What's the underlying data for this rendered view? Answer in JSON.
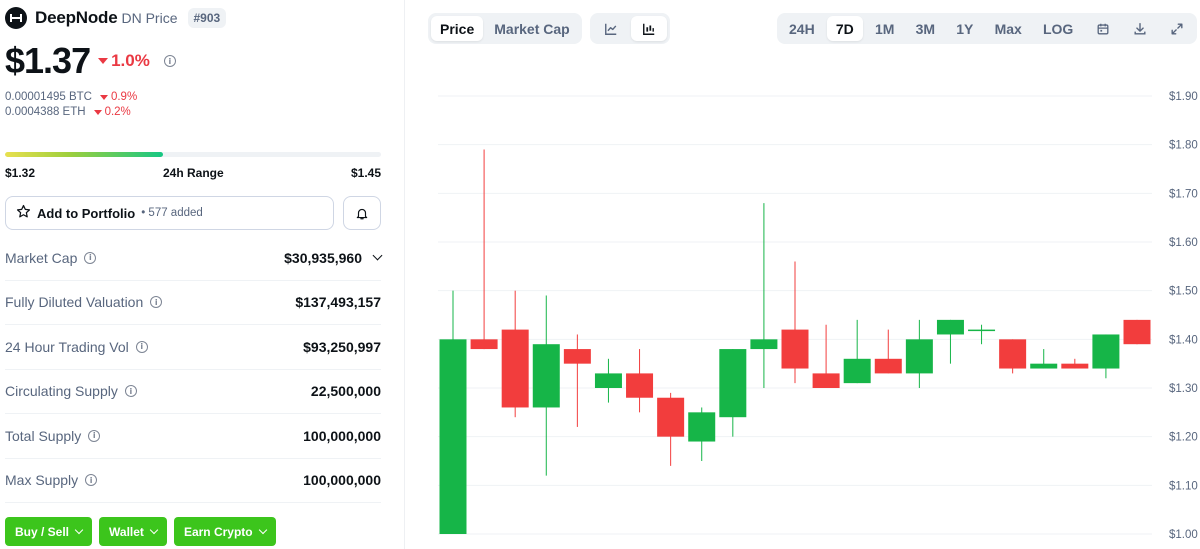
{
  "coin": {
    "name": "DeepNode",
    "symbol_label": "DN Price",
    "rank": "#903",
    "price": "$1.37",
    "change": "1.0%",
    "btc_value": "0.00001495 BTC",
    "btc_change": "0.9%",
    "eth_value": "0.0004388 ETH",
    "eth_change": "0.2%"
  },
  "range": {
    "low": "$1.32",
    "label": "24h Range",
    "high": "$1.45",
    "fill_fraction": 0.42
  },
  "portfolio": {
    "add_label": "Add to Portfolio",
    "added_count": "• 577 added"
  },
  "stats": [
    {
      "label": "Market Cap",
      "value": "$30,935,960",
      "expandable": true
    },
    {
      "label": "Fully Diluted Valuation",
      "value": "$137,493,157",
      "expandable": false
    },
    {
      "label": "24 Hour Trading Vol",
      "value": "$93,250,997",
      "expandable": false
    },
    {
      "label": "Circulating Supply",
      "value": "22,500,000",
      "expandable": false
    },
    {
      "label": "Total Supply",
      "value": "100,000,000",
      "expandable": false
    },
    {
      "label": "Max Supply",
      "value": "100,000,000",
      "expandable": false
    }
  ],
  "actions": [
    "Buy / Sell",
    "Wallet",
    "Earn Crypto"
  ],
  "chart_controls": {
    "metric_tabs": [
      "Price",
      "Market Cap"
    ],
    "metric_active": "Price",
    "chart_types": [
      "line-chart-icon",
      "candlestick-chart-icon"
    ],
    "chart_type_active": "candlestick-chart-icon",
    "ranges": [
      "24H",
      "7D",
      "1M",
      "3M",
      "1Y",
      "Max",
      "LOG"
    ],
    "range_active": "7D",
    "tools": [
      "calendar-icon",
      "download-icon",
      "expand-icon"
    ]
  },
  "colors": {
    "up": "#16b548",
    "down": "#f23d3d",
    "negative_text": "#ea3943",
    "action_green": "#3cc51c"
  },
  "chart_data": {
    "type": "candlestick",
    "y_ticks": [
      "$1.90",
      "$1.80",
      "$1.70",
      "$1.60",
      "$1.50",
      "$1.40",
      "$1.30",
      "$1.20",
      "$1.10",
      "$1.00"
    ],
    "ylim": [
      1.0,
      1.9
    ],
    "grid": true,
    "candles": [
      {
        "o": 1.0,
        "h": 1.5,
        "l": 1.0,
        "c": 1.4
      },
      {
        "o": 1.4,
        "h": 1.79,
        "l": 1.38,
        "c": 1.38
      },
      {
        "o": 1.42,
        "h": 1.5,
        "l": 1.24,
        "c": 1.26
      },
      {
        "o": 1.26,
        "h": 1.49,
        "l": 1.12,
        "c": 1.39
      },
      {
        "o": 1.38,
        "h": 1.41,
        "l": 1.22,
        "c": 1.35
      },
      {
        "o": 1.3,
        "h": 1.36,
        "l": 1.27,
        "c": 1.33
      },
      {
        "o": 1.33,
        "h": 1.38,
        "l": 1.25,
        "c": 1.28
      },
      {
        "o": 1.28,
        "h": 1.29,
        "l": 1.14,
        "c": 1.2
      },
      {
        "o": 1.19,
        "h": 1.26,
        "l": 1.15,
        "c": 1.25
      },
      {
        "o": 1.24,
        "h": 1.38,
        "l": 1.2,
        "c": 1.38
      },
      {
        "o": 1.38,
        "h": 1.68,
        "l": 1.3,
        "c": 1.4
      },
      {
        "o": 1.42,
        "h": 1.56,
        "l": 1.31,
        "c": 1.34
      },
      {
        "o": 1.33,
        "h": 1.43,
        "l": 1.3,
        "c": 1.3
      },
      {
        "o": 1.31,
        "h": 1.44,
        "l": 1.31,
        "c": 1.36
      },
      {
        "o": 1.36,
        "h": 1.42,
        "l": 1.33,
        "c": 1.33
      },
      {
        "o": 1.33,
        "h": 1.44,
        "l": 1.3,
        "c": 1.4
      },
      {
        "o": 1.41,
        "h": 1.44,
        "l": 1.35,
        "c": 1.44
      },
      {
        "o": 1.42,
        "h": 1.43,
        "l": 1.39,
        "c": 1.42
      },
      {
        "o": 1.4,
        "h": 1.4,
        "l": 1.33,
        "c": 1.34
      },
      {
        "o": 1.34,
        "h": 1.38,
        "l": 1.34,
        "c": 1.35
      },
      {
        "o": 1.35,
        "h": 1.36,
        "l": 1.34,
        "c": 1.34
      },
      {
        "o": 1.34,
        "h": 1.41,
        "l": 1.32,
        "c": 1.41
      },
      {
        "o": 1.44,
        "h": 1.44,
        "l": 1.39,
        "c": 1.39
      }
    ]
  }
}
